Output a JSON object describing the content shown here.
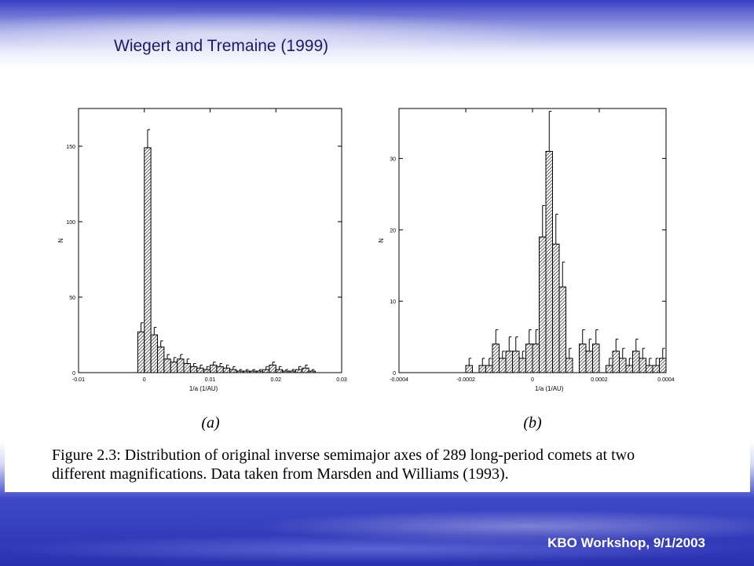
{
  "slide": {
    "title": "Wiegert and Tremaine (1999)",
    "footer": "KBO Workshop, 9/1/2003"
  },
  "caption": {
    "line1": "Figure 2.3: Distribution of original inverse semimajor axes of 289 long-period comets at two",
    "line2": "different magnifications. Data taken from Marsden and Williams (1993)."
  },
  "chart_data": [
    {
      "type": "bar",
      "panel_label": "(a)",
      "xlabel": "1/a (1/AU)",
      "ylabel": "N",
      "xlim": [
        -0.01,
        0.03
      ],
      "ylim": [
        0,
        175
      ],
      "xticks": [
        "-0.01",
        "0",
        "0.01",
        "0.02",
        "0.03"
      ],
      "yticks": [
        "0",
        "50",
        "100",
        "150"
      ],
      "bin_width": 0.001,
      "x": [
        -0.001,
        0.0,
        0.001,
        0.002,
        0.003,
        0.004,
        0.005,
        0.006,
        0.007,
        0.008,
        0.009,
        0.01,
        0.011,
        0.012,
        0.013,
        0.014,
        0.015,
        0.016,
        0.017,
        0.018,
        0.019,
        0.02,
        0.021,
        0.022,
        0.023,
        0.024,
        0.025
      ],
      "values": [
        27,
        149,
        25,
        17,
        9,
        7,
        9,
        6,
        4,
        3,
        2,
        5,
        4,
        3,
        2,
        1,
        1,
        1,
        1,
        2,
        5,
        2,
        1,
        1,
        2,
        3,
        1
      ],
      "errors": [
        6,
        12,
        5,
        4,
        3,
        3,
        3,
        3,
        2,
        2,
        2,
        2,
        2,
        2,
        2,
        1,
        1,
        1,
        1,
        2,
        2,
        2,
        1,
        1,
        2,
        2,
        1
      ]
    },
    {
      "type": "bar",
      "panel_label": "(b)",
      "xlabel": "1/a (1/AU)",
      "ylabel": "N",
      "xlim": [
        -0.0004,
        0.0004
      ],
      "ylim": [
        0,
        37
      ],
      "xticks": [
        "-0.0004",
        "-0.0002",
        "0",
        "0.0002",
        "0.0004"
      ],
      "yticks": [
        "0",
        "10",
        "20",
        "30"
      ],
      "bin_width": 2e-05,
      "x": [
        -0.0002,
        -0.00018,
        -0.00016,
        -0.00014,
        -0.00012,
        -0.0001,
        -8e-05,
        -6e-05,
        -4e-05,
        -2e-05,
        0.0,
        2e-05,
        4e-05,
        6e-05,
        8e-05,
        0.0001,
        0.00012,
        0.00014,
        0.00016,
        0.00018,
        0.0002,
        0.00022,
        0.00024,
        0.00026,
        0.00028,
        0.0003,
        0.00032,
        0.00034,
        0.00036,
        0.00038
      ],
      "values": [
        1,
        0,
        1,
        1,
        4,
        2,
        3,
        3,
        2,
        4,
        4,
        19,
        31,
        18,
        12,
        2,
        0,
        4,
        3,
        4,
        0,
        1,
        3,
        2,
        1,
        3,
        2,
        1,
        1,
        2
      ],
      "errors": [
        1,
        0,
        1,
        1,
        2,
        1,
        2,
        2,
        1,
        2,
        2,
        4.4,
        5.6,
        4.2,
        3.5,
        1.4,
        0,
        2,
        1.7,
        2,
        0,
        1,
        1.7,
        1.4,
        1,
        1.7,
        1.4,
        1,
        1,
        1.4
      ]
    }
  ]
}
